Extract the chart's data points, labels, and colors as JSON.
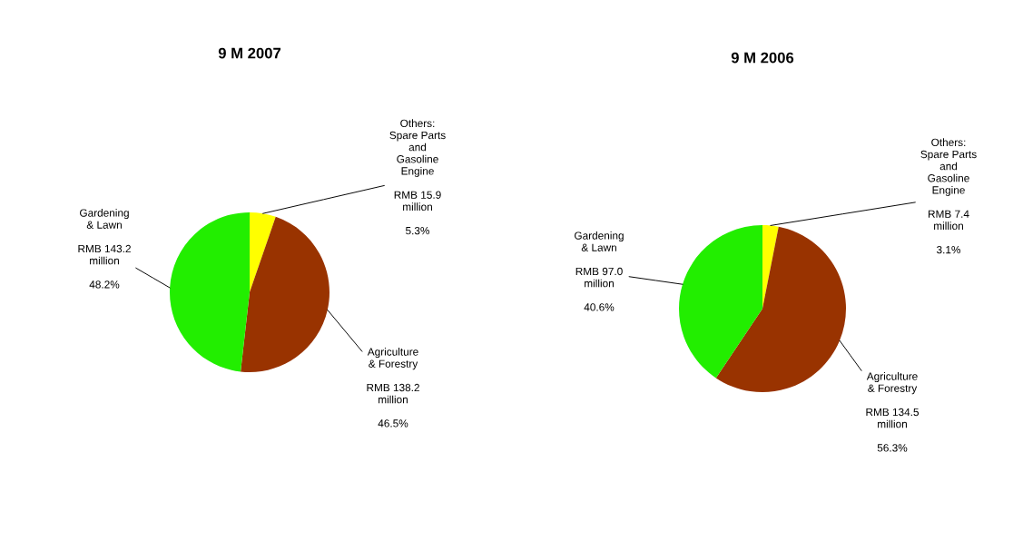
{
  "chart_data": [
    {
      "type": "pie",
      "title": "9 M 2007",
      "categories": [
        "Others:\nSpare Parts\nand\nGasoline\nEngine",
        "Agriculture\n& Forestry",
        "Gardening\n& Lawn"
      ],
      "values": [
        5.3,
        46.5,
        48.2
      ],
      "colors": [
        "#ffff00",
        "#993300",
        "#22ee00"
      ],
      "value_labels": [
        "RMB 15.9\nmillion\n\n5.3%",
        "RMB 138.2\nmillion\n\n46.5%",
        "RMB 143.2\nmillion\n\n48.2%"
      ]
    },
    {
      "type": "pie",
      "title": "9 M 2006",
      "categories": [
        "Others:\nSpare Parts\nand\nGasoline\nEngine",
        "Agriculture\n& Forestry",
        "Gardening\n& Lawn"
      ],
      "values": [
        3.1,
        56.3,
        40.6
      ],
      "colors": [
        "#ffff00",
        "#993300",
        "#22ee00"
      ],
      "value_labels": [
        "RMB 7.4\nmillion\n\n3.1%",
        "RMB 134.5\nmillion\n\n56.3%",
        "RMB 97.0\nmillion\n\n40.6%"
      ]
    }
  ]
}
